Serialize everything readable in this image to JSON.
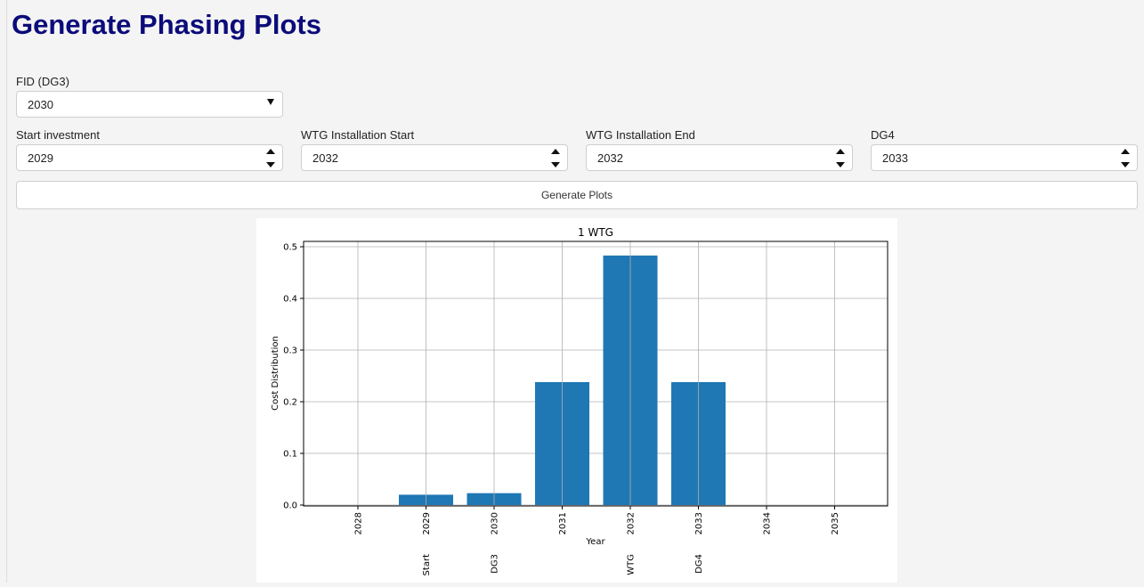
{
  "page": {
    "title": "Generate Phasing Plots"
  },
  "form": {
    "fid": {
      "label": "FID (DG3)",
      "value": "2030"
    },
    "start_investment": {
      "label": "Start investment",
      "value": "2029"
    },
    "wtg_start": {
      "label": "WTG Installation Start",
      "value": "2032"
    },
    "wtg_end": {
      "label": "WTG Installation End",
      "value": "2032"
    },
    "dg4": {
      "label": "DG4",
      "value": "2033"
    },
    "generate_label": "Generate Plots"
  },
  "chart_data": {
    "type": "bar",
    "title": "1 WTG",
    "xlabel": "Year",
    "ylabel": "Cost Distribution",
    "categories": [
      "2028",
      "2029",
      "2030",
      "2031",
      "2032",
      "2033",
      "2034",
      "2035"
    ],
    "values": [
      0.0,
      0.02,
      0.023,
      0.238,
      0.483,
      0.238,
      0.0,
      0.0
    ],
    "ylim": [
      0,
      0.5
    ],
    "yticks": [
      "0.0",
      "0.1",
      "0.2",
      "0.3",
      "0.4",
      "0.5"
    ],
    "milestones": [
      {
        "year": "2029",
        "label": "Start"
      },
      {
        "year": "2030",
        "label": "DG3"
      },
      {
        "year": "2032",
        "label": "WTG"
      },
      {
        "year": "2033",
        "label": "DG4"
      }
    ],
    "grid": true,
    "bar_color": "#1f77b4"
  }
}
